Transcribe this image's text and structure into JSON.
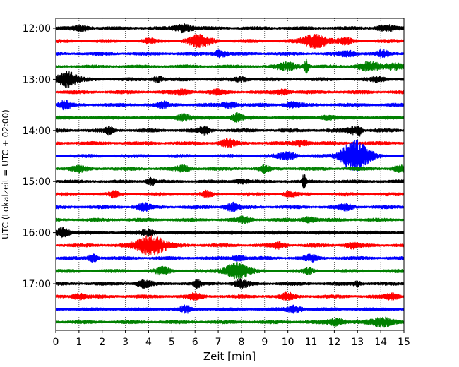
{
  "chart_data": {
    "type": "line",
    "title": "",
    "xlabel": "Zeit  [min]",
    "ylabel": "UTC (Lokalzeit = UTC + 02:00)",
    "xlim": [
      0,
      15
    ],
    "x_ticks": [
      0,
      1,
      2,
      3,
      4,
      5,
      6,
      7,
      8,
      9,
      10,
      11,
      12,
      13,
      14,
      15
    ],
    "grid": "vertical dotted lines at every minute",
    "legend": "none",
    "trace_interval_min": 15,
    "start_time_utc": "12:00",
    "y_ticks": [
      {
        "label": "12:00",
        "trace_index": 0
      },
      {
        "label": "13:00",
        "trace_index": 4
      },
      {
        "label": "14:00",
        "trace_index": 8
      },
      {
        "label": "15:00",
        "trace_index": 12
      },
      {
        "label": "16:00",
        "trace_index": 16
      },
      {
        "label": "17:00",
        "trace_index": 20
      }
    ],
    "colors": [
      "#000000",
      "#ff0000",
      "#0000ff",
      "#008000"
    ],
    "traces": [
      {
        "start": "12:00",
        "color": "#000000",
        "bursts": [
          {
            "t": 1.1,
            "amp": 0.4,
            "w": 0.35
          },
          {
            "t": 5.5,
            "amp": 0.6,
            "w": 0.4
          },
          {
            "t": 14.2,
            "amp": 0.4,
            "w": 0.4
          }
        ]
      },
      {
        "start": "12:15",
        "color": "#ff0000",
        "bursts": [
          {
            "t": 4.0,
            "amp": 0.4,
            "w": 0.2
          },
          {
            "t": 6.2,
            "amp": 0.9,
            "w": 0.5
          },
          {
            "t": 11.2,
            "amp": 1.0,
            "w": 0.55
          },
          {
            "t": 12.5,
            "amp": 0.4,
            "w": 0.3
          }
        ]
      },
      {
        "start": "12:30",
        "color": "#0000ff",
        "bursts": [
          {
            "t": 7.1,
            "amp": 0.5,
            "w": 0.3
          },
          {
            "t": 12.6,
            "amp": 0.4,
            "w": 0.4
          },
          {
            "t": 14.1,
            "amp": 0.5,
            "w": 0.25
          }
        ]
      },
      {
        "start": "12:45",
        "color": "#008000",
        "bursts": [
          {
            "t": 10.0,
            "amp": 0.5,
            "w": 0.5
          },
          {
            "t": 10.8,
            "amp": 1.1,
            "w": 0.1
          },
          {
            "t": 13.5,
            "amp": 0.6,
            "w": 0.5
          },
          {
            "t": 14.6,
            "amp": 0.5,
            "w": 0.4
          }
        ]
      },
      {
        "start": "13:00",
        "color": "#000000",
        "bursts": [
          {
            "t": 0.5,
            "amp": 1.2,
            "w": 0.45
          },
          {
            "t": 4.4,
            "amp": 0.4,
            "w": 0.25
          },
          {
            "t": 8.0,
            "amp": 0.3,
            "w": 0.3
          },
          {
            "t": 13.9,
            "amp": 0.4,
            "w": 0.3
          }
        ]
      },
      {
        "start": "13:15",
        "color": "#ff0000",
        "bursts": [
          {
            "t": 5.5,
            "amp": 0.4,
            "w": 0.3
          },
          {
            "t": 7.0,
            "amp": 0.3,
            "w": 0.3
          },
          {
            "t": 9.8,
            "amp": 0.4,
            "w": 0.3
          }
        ]
      },
      {
        "start": "13:30",
        "color": "#0000ff",
        "bursts": [
          {
            "t": 0.4,
            "amp": 0.6,
            "w": 0.25
          },
          {
            "t": 4.6,
            "amp": 0.4,
            "w": 0.25
          },
          {
            "t": 7.5,
            "amp": 0.5,
            "w": 0.3
          },
          {
            "t": 10.2,
            "amp": 0.4,
            "w": 0.3
          }
        ]
      },
      {
        "start": "13:45",
        "color": "#008000",
        "bursts": [
          {
            "t": 5.5,
            "amp": 0.5,
            "w": 0.3
          },
          {
            "t": 7.8,
            "amp": 0.6,
            "w": 0.25
          },
          {
            "t": 11.7,
            "amp": 0.3,
            "w": 0.3
          }
        ]
      },
      {
        "start": "14:00",
        "color": "#000000",
        "bursts": [
          {
            "t": 2.3,
            "amp": 0.5,
            "w": 0.2
          },
          {
            "t": 6.4,
            "amp": 0.5,
            "w": 0.25
          },
          {
            "t": 12.8,
            "amp": 0.5,
            "w": 0.3
          },
          {
            "t": 13.1,
            "amp": 0.6,
            "w": 0.1
          }
        ]
      },
      {
        "start": "14:15",
        "color": "#ff0000",
        "bursts": [
          {
            "t": 7.4,
            "amp": 0.5,
            "w": 0.35
          },
          {
            "t": 10.6,
            "amp": 0.4,
            "w": 0.35
          }
        ]
      },
      {
        "start": "14:30",
        "color": "#0000ff",
        "bursts": [
          {
            "t": 10.0,
            "amp": 0.5,
            "w": 0.4
          },
          {
            "t": 12.9,
            "amp": 2.4,
            "w": 0.6
          }
        ]
      },
      {
        "start": "14:45",
        "color": "#008000",
        "bursts": [
          {
            "t": 1.0,
            "amp": 0.4,
            "w": 0.3
          },
          {
            "t": 5.5,
            "amp": 0.4,
            "w": 0.3
          },
          {
            "t": 9.0,
            "amp": 0.5,
            "w": 0.2
          },
          {
            "t": 14.8,
            "amp": 0.4,
            "w": 0.3
          }
        ]
      },
      {
        "start": "15:00",
        "color": "#000000",
        "bursts": [
          {
            "t": 4.1,
            "amp": 0.5,
            "w": 0.2
          },
          {
            "t": 8.0,
            "amp": 0.3,
            "w": 0.3
          },
          {
            "t": 10.7,
            "amp": 1.2,
            "w": 0.08
          }
        ]
      },
      {
        "start": "15:15",
        "color": "#ff0000",
        "bursts": [
          {
            "t": 2.5,
            "amp": 0.4,
            "w": 0.2
          },
          {
            "t": 6.5,
            "amp": 0.4,
            "w": 0.2
          },
          {
            "t": 10.1,
            "amp": 0.4,
            "w": 0.25
          }
        ]
      },
      {
        "start": "15:30",
        "color": "#0000ff",
        "bursts": [
          {
            "t": 3.8,
            "amp": 0.5,
            "w": 0.3
          },
          {
            "t": 7.6,
            "amp": 0.6,
            "w": 0.3
          },
          {
            "t": 12.5,
            "amp": 0.4,
            "w": 0.3
          }
        ]
      },
      {
        "start": "15:45",
        "color": "#008000",
        "bursts": [
          {
            "t": 8.1,
            "amp": 0.4,
            "w": 0.3
          },
          {
            "t": 10.9,
            "amp": 0.4,
            "w": 0.3
          }
        ]
      },
      {
        "start": "16:00",
        "color": "#000000",
        "bursts": [
          {
            "t": 0.3,
            "amp": 0.7,
            "w": 0.3
          },
          {
            "t": 4.0,
            "amp": 0.4,
            "w": 0.3
          }
        ]
      },
      {
        "start": "16:15",
        "color": "#ff0000",
        "bursts": [
          {
            "t": 4.1,
            "amp": 1.5,
            "w": 0.65
          },
          {
            "t": 9.6,
            "amp": 0.4,
            "w": 0.3
          },
          {
            "t": 12.8,
            "amp": 0.4,
            "w": 0.3
          }
        ]
      },
      {
        "start": "16:30",
        "color": "#0000ff",
        "bursts": [
          {
            "t": 1.6,
            "amp": 0.6,
            "w": 0.2
          },
          {
            "t": 7.9,
            "amp": 0.4,
            "w": 0.3
          },
          {
            "t": 11.0,
            "amp": 0.4,
            "w": 0.3
          }
        ]
      },
      {
        "start": "16:45",
        "color": "#008000",
        "bursts": [
          {
            "t": 4.6,
            "amp": 0.5,
            "w": 0.3
          },
          {
            "t": 7.8,
            "amp": 1.3,
            "w": 0.5
          },
          {
            "t": 10.9,
            "amp": 0.4,
            "w": 0.2
          }
        ]
      },
      {
        "start": "17:00",
        "color": "#000000",
        "bursts": [
          {
            "t": 3.8,
            "amp": 0.5,
            "w": 0.3
          },
          {
            "t": 6.1,
            "amp": 0.5,
            "w": 0.15
          },
          {
            "t": 8.0,
            "amp": 0.6,
            "w": 0.3
          },
          {
            "t": 13.0,
            "amp": 0.3,
            "w": 0.2
          }
        ]
      },
      {
        "start": "17:15",
        "color": "#ff0000",
        "bursts": [
          {
            "t": 1.0,
            "amp": 0.4,
            "w": 0.3
          },
          {
            "t": 6.0,
            "amp": 0.4,
            "w": 0.3
          },
          {
            "t": 10.0,
            "amp": 0.5,
            "w": 0.25
          },
          {
            "t": 14.5,
            "amp": 0.4,
            "w": 0.3
          }
        ]
      },
      {
        "start": "17:30",
        "color": "#0000ff",
        "bursts": [
          {
            "t": 5.6,
            "amp": 0.5,
            "w": 0.2
          },
          {
            "t": 10.3,
            "amp": 0.5,
            "w": 0.3
          }
        ]
      },
      {
        "start": "17:45",
        "color": "#008000",
        "bursts": [
          {
            "t": 12.1,
            "amp": 0.5,
            "w": 0.4
          },
          {
            "t": 14.1,
            "amp": 0.7,
            "w": 0.5
          }
        ]
      }
    ]
  }
}
